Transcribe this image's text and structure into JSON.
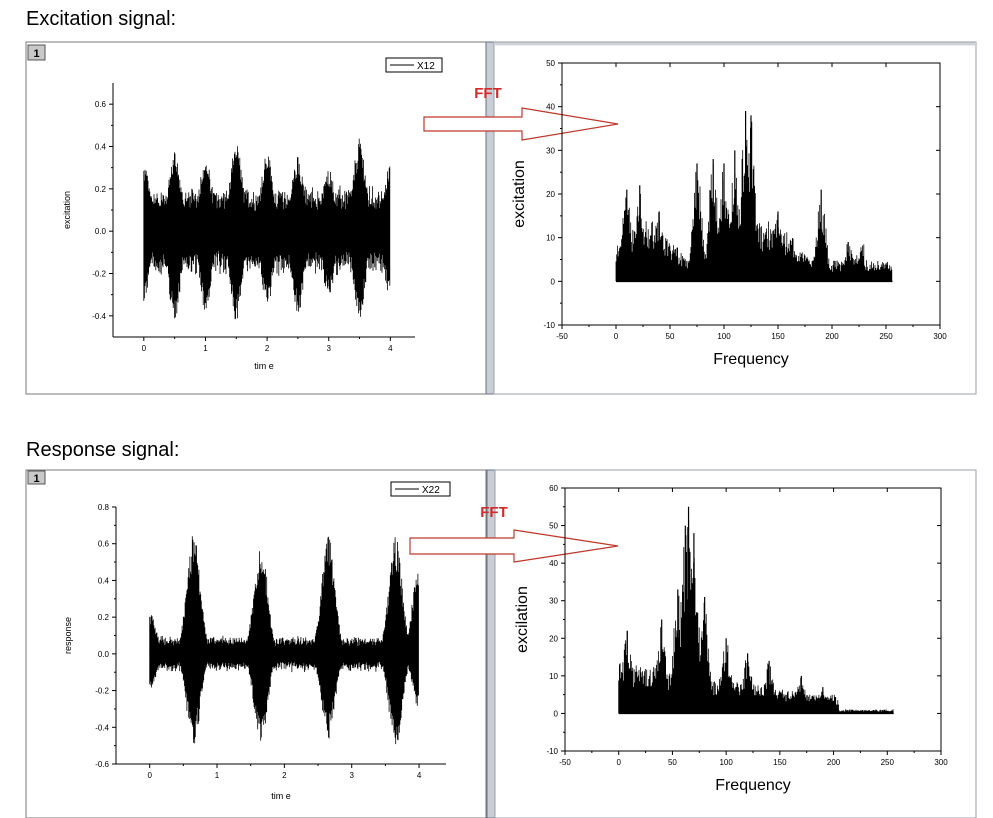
{
  "sections": {
    "excitation_title": "Excitation signal:",
    "response_title": "Response signal:",
    "fft_label": "FFT",
    "page_number_label": "1"
  },
  "chart_data": [
    {
      "id": "excitation-time",
      "type": "area",
      "legend": "X12",
      "xlabel": "tim e",
      "ylabel": "excitation",
      "xlim": [
        -0.5,
        4.4
      ],
      "ylim": [
        -0.5,
        0.7
      ],
      "xticks": [
        0,
        1,
        2,
        3,
        4
      ],
      "yticks": [
        -0.4,
        -0.2,
        0.0,
        0.2,
        0.4,
        0.6
      ],
      "x_range": [
        0,
        4
      ],
      "envelope_peaks": [
        {
          "x": 0.0,
          "max": 0.32,
          "min": -0.33
        },
        {
          "x": 0.5,
          "max": 0.38,
          "min": -0.42
        },
        {
          "x": 1.0,
          "max": 0.36,
          "min": -0.38
        },
        {
          "x": 1.5,
          "max": 0.42,
          "min": -0.43
        },
        {
          "x": 2.0,
          "max": 0.38,
          "min": -0.36
        },
        {
          "x": 2.5,
          "max": 0.36,
          "min": -0.4
        },
        {
          "x": 3.0,
          "max": 0.3,
          "min": -0.32
        },
        {
          "x": 3.5,
          "max": 0.44,
          "min": -0.42
        },
        {
          "x": 4.0,
          "max": 0.32,
          "min": -0.32
        }
      ]
    },
    {
      "id": "excitation-fft",
      "type": "bar",
      "xlabel": "Frequency",
      "ylabel": "excitation",
      "xlim": [
        -50,
        300
      ],
      "ylim": [
        -10,
        50
      ],
      "xticks": [
        -50,
        0,
        50,
        100,
        150,
        200,
        250,
        300
      ],
      "yticks": [
        -10,
        0,
        10,
        20,
        30,
        40,
        50
      ],
      "x_range": [
        0,
        256
      ],
      "peaks": [
        {
          "x": 10,
          "y": 21
        },
        {
          "x": 22,
          "y": 22
        },
        {
          "x": 40,
          "y": 16
        },
        {
          "x": 75,
          "y": 27
        },
        {
          "x": 90,
          "y": 28
        },
        {
          "x": 100,
          "y": 27
        },
        {
          "x": 110,
          "y": 30
        },
        {
          "x": 120,
          "y": 39
        },
        {
          "x": 125,
          "y": 38
        },
        {
          "x": 150,
          "y": 16
        },
        {
          "x": 190,
          "y": 21
        },
        {
          "x": 215,
          "y": 9
        },
        {
          "x": 250,
          "y": 4
        }
      ]
    },
    {
      "id": "response-time",
      "type": "area",
      "legend": "X22",
      "xlabel": "tim e",
      "ylabel": "response",
      "xlim": [
        -0.5,
        4.4
      ],
      "ylim": [
        -0.6,
        0.8
      ],
      "xticks": [
        0,
        1,
        2,
        3,
        4
      ],
      "yticks": [
        -0.6,
        -0.4,
        -0.2,
        0.0,
        0.2,
        0.4,
        0.6,
        0.8
      ],
      "x_range": [
        0,
        4
      ],
      "envelope_peaks": [
        {
          "x": 0.0,
          "max": 0.22,
          "min": -0.2
        },
        {
          "x": 0.65,
          "max": 0.66,
          "min": -0.51
        },
        {
          "x": 1.65,
          "max": 0.62,
          "min": -0.5
        },
        {
          "x": 2.65,
          "max": 0.64,
          "min": -0.47
        },
        {
          "x": 3.65,
          "max": 0.64,
          "min": -0.51
        },
        {
          "x": 4.0,
          "max": 0.48,
          "min": -0.3
        }
      ]
    },
    {
      "id": "response-fft",
      "type": "bar",
      "xlabel": "Frequency",
      "ylabel": "excilation",
      "xlim": [
        -50,
        300
      ],
      "ylim": [
        -10,
        60
      ],
      "xticks": [
        -50,
        0,
        50,
        100,
        150,
        200,
        250,
        300
      ],
      "yticks": [
        -10,
        0,
        10,
        20,
        30,
        40,
        50,
        60
      ],
      "x_range": [
        0,
        256
      ],
      "peaks": [
        {
          "x": 8,
          "y": 22
        },
        {
          "x": 40,
          "y": 25
        },
        {
          "x": 55,
          "y": 33
        },
        {
          "x": 62,
          "y": 50
        },
        {
          "x": 65,
          "y": 55
        },
        {
          "x": 70,
          "y": 48
        },
        {
          "x": 80,
          "y": 31
        },
        {
          "x": 100,
          "y": 20
        },
        {
          "x": 120,
          "y": 16
        },
        {
          "x": 140,
          "y": 14
        },
        {
          "x": 170,
          "y": 10
        },
        {
          "x": 190,
          "y": 7
        },
        {
          "x": 215,
          "y": 1
        }
      ]
    }
  ]
}
